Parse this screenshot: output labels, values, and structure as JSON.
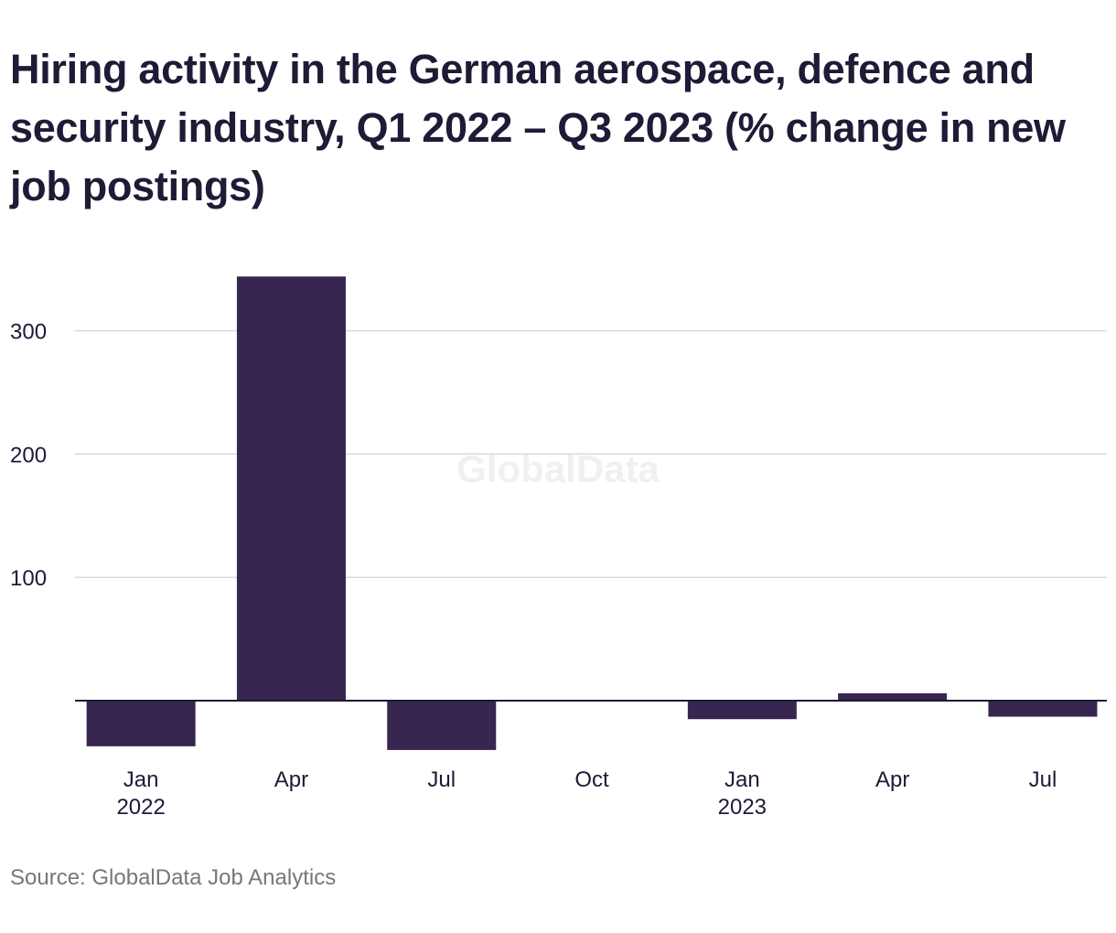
{
  "title": "Hiring activity in the German aerospace, defence and security industry, Q1 2022 – Q3 2023 (% change in new job postings)",
  "source": "Source: GlobalData Job Analytics",
  "watermark": "GlobalData",
  "colors": {
    "bar": "#372650",
    "grid": "#d9d9d9",
    "axis": "#1c1a33",
    "text": "#1d1b36",
    "muted": "#777777"
  },
  "chart_data": {
    "type": "bar",
    "categories": [
      "Q1 2022",
      "Q2 2022",
      "Q3 2022",
      "Q4 2022",
      "Q1 2023",
      "Q2 2023",
      "Q3 2023"
    ],
    "x_tick_labels": [
      {
        "month": "Jan",
        "year": "2022"
      },
      {
        "month": "Apr",
        "year": ""
      },
      {
        "month": "Jul",
        "year": ""
      },
      {
        "month": "Oct",
        "year": ""
      },
      {
        "month": "Jan",
        "year": "2023"
      },
      {
        "month": "Apr",
        "year": ""
      },
      {
        "month": "Jul",
        "year": ""
      }
    ],
    "values": [
      -37,
      344,
      -40,
      0,
      -15,
      6,
      -13
    ],
    "y_ticks": [
      100,
      200,
      300
    ],
    "ylim": [
      -50,
      360
    ],
    "grid": true,
    "xlabel": "",
    "ylabel": ""
  }
}
